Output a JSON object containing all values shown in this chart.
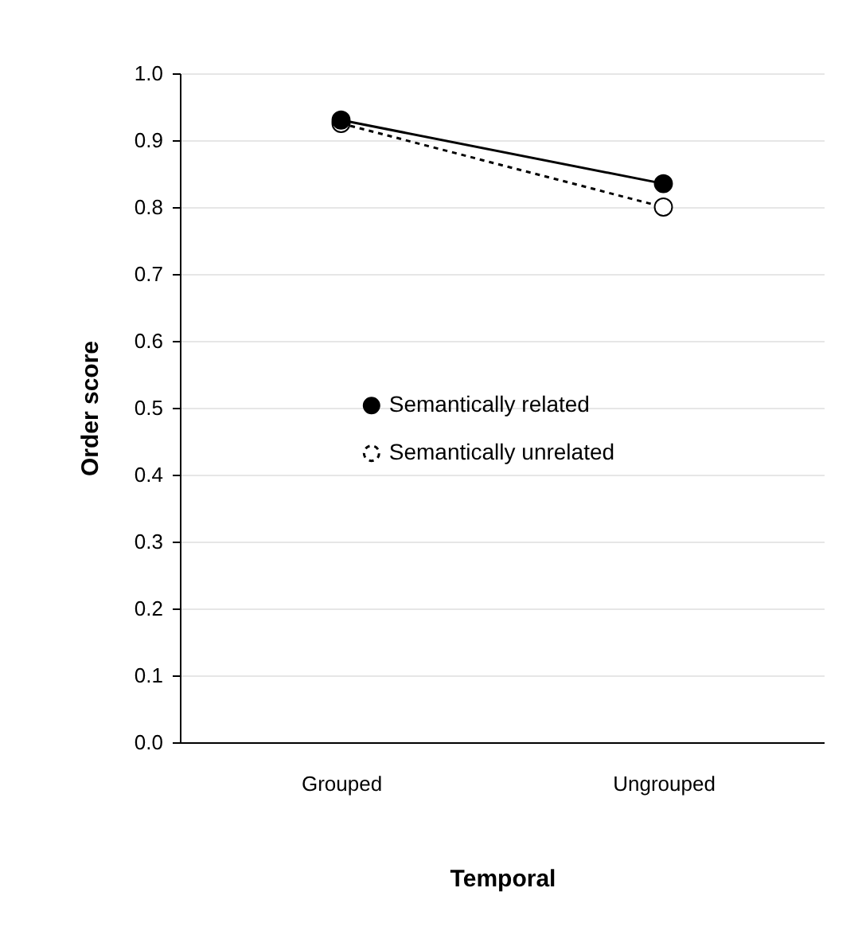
{
  "chart_data": {
    "type": "line",
    "xlabel": "Temporal",
    "ylabel": "Order score",
    "categories": [
      "Grouped",
      "Ungrouped"
    ],
    "series": [
      {
        "name": "Semantically related",
        "color": "#000000",
        "values": [
          0.93,
          0.835
        ],
        "line_style": "solid"
      },
      {
        "name": "Semantically unrelated",
        "color": "#000000",
        "values": [
          0.925,
          0.8
        ],
        "line_style": "dashed"
      }
    ],
    "ylim": [
      0,
      1
    ],
    "yticks": [
      {
        "value": 0,
        "label": "0.0"
      },
      0.1,
      0.2,
      0.3,
      0.4,
      0.5,
      0.6,
      0.7,
      0.8,
      0.9,
      {
        "value": 1,
        "label": "1.0"
      }
    ],
    "grid": "y",
    "legend": "right",
    "marker": "circle"
  }
}
